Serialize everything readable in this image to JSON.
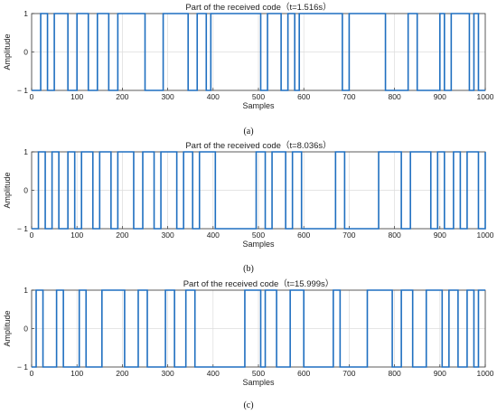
{
  "panels": [
    {
      "caption": "(a)",
      "chart_data": {
        "type": "line",
        "title": "Part of the received code（t=1.516s）",
        "xlabel": "Samples",
        "ylabel": "Amplitude",
        "xlim": [
          0,
          1000
        ],
        "ylim": [
          -1,
          1
        ],
        "xticks": [
          "0",
          "100",
          "200",
          "300",
          "400",
          "500",
          "600",
          "700",
          "800",
          "900",
          "1000"
        ],
        "yticks": [
          "1",
          "0",
          "− 1"
        ],
        "grid": true,
        "color": "#1f6fc0",
        "initial": -1,
        "transitions": [
          20,
          35,
          50,
          80,
          100,
          125,
          145,
          170,
          190,
          250,
          290,
          345,
          365,
          385,
          395,
          505,
          520,
          550,
          565,
          580,
          590,
          685,
          700,
          780,
          830,
          850,
          900,
          910,
          925,
          965,
          975,
          985
        ]
      }
    },
    {
      "caption": "(b)",
      "chart_data": {
        "type": "line",
        "title": "Part of the received code（t=8.036s）",
        "xlabel": "Samples",
        "ylabel": "Amplitude",
        "xlim": [
          0,
          1000
        ],
        "ylim": [
          -1,
          1
        ],
        "xticks": [
          "0",
          "100",
          "200",
          "300",
          "400",
          "500",
          "600",
          "700",
          "800",
          "900",
          "1000"
        ],
        "yticks": [
          "1",
          "0",
          "− 1"
        ],
        "grid": true,
        "color": "#1f6fc0",
        "initial": -1,
        "transitions": [
          15,
          30,
          45,
          60,
          80,
          95,
          110,
          135,
          150,
          175,
          190,
          225,
          245,
          270,
          285,
          320,
          335,
          355,
          370,
          405,
          495,
          515,
          530,
          560,
          575,
          595,
          670,
          690,
          765,
          815,
          835,
          880,
          895,
          910,
          930,
          945,
          960,
          985,
          1000
        ]
      }
    },
    {
      "caption": "(c)",
      "chart_data": {
        "type": "line",
        "title": "Part of the received code（t=15.999s）",
        "xlabel": "Samples",
        "ylabel": "Amplitude",
        "xlim": [
          0,
          1000
        ],
        "ylim": [
          -1,
          1
        ],
        "xticks": [
          "0",
          "100",
          "200",
          "300",
          "400",
          "500",
          "600",
          "700",
          "800",
          "900",
          "1000"
        ],
        "yticks": [
          "1",
          "0",
          "− 1"
        ],
        "grid": true,
        "color": "#1f6fc0",
        "initial": -1,
        "transitions": [
          10,
          25,
          55,
          70,
          105,
          120,
          155,
          205,
          235,
          255,
          295,
          315,
          340,
          360,
          470,
          505,
          515,
          540,
          570,
          600,
          665,
          680,
          740,
          795,
          815,
          840,
          870,
          905,
          920,
          940,
          960,
          975,
          985
        ]
      }
    }
  ]
}
